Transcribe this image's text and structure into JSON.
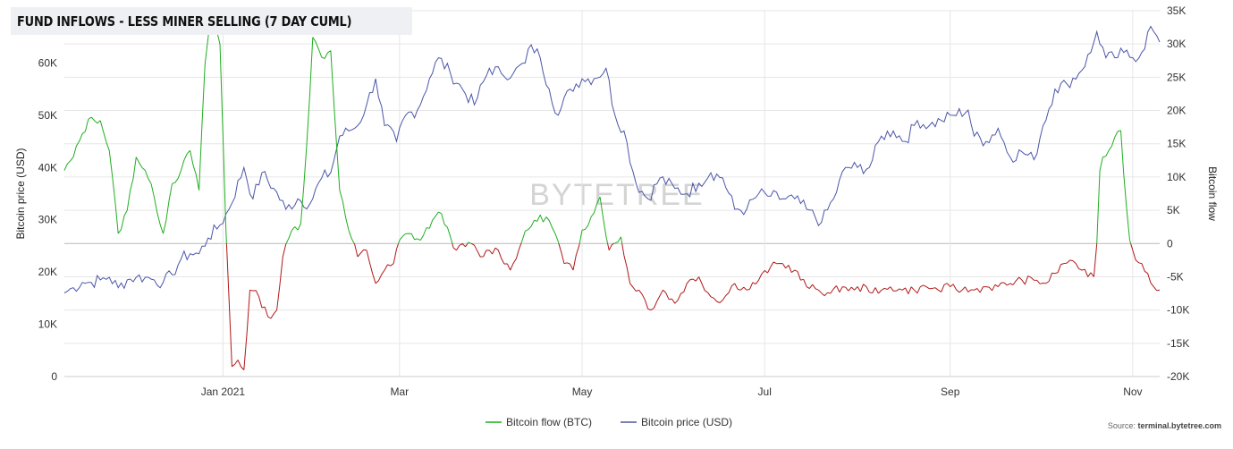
{
  "title": "FUND INFLOWS - LESS MINER SELLING (7 DAY CUML)",
  "watermark": "BYTETREE",
  "source_prefix": "Source: ",
  "source_site": "terminal.bytetree.com",
  "colors": {
    "flow_positive": "#1fae1f",
    "flow_negative": "#b01818",
    "price": "#4b56a8"
  },
  "chart_data": {
    "type": "line",
    "x_range": [
      "2020-11-09",
      "2021-11-10"
    ],
    "x_ticks": [
      {
        "date": "2021-01-01",
        "label": "Jan 2021"
      },
      {
        "date": "2021-03-01",
        "label": "Mar"
      },
      {
        "date": "2021-05-01",
        "label": "May"
      },
      {
        "date": "2021-07-01",
        "label": "Jul"
      },
      {
        "date": "2021-09-01",
        "label": "Sep"
      },
      {
        "date": "2021-11-01",
        "label": "Nov"
      }
    ],
    "y_left": {
      "label": "Bitcoin price (USD)",
      "range": [
        0,
        70000
      ],
      "ticks": [
        0,
        10000,
        20000,
        30000,
        40000,
        50000,
        60000
      ],
      "tick_labels": [
        "0",
        "10K",
        "20K",
        "30K",
        "40K",
        "50K",
        "60K"
      ]
    },
    "y_right": {
      "label": "Bitcoin flow",
      "range": [
        -20000,
        35000
      ],
      "ticks": [
        -20000,
        -15000,
        -10000,
        -5000,
        0,
        5000,
        10000,
        15000,
        20000,
        25000,
        30000,
        35000
      ],
      "tick_labels": [
        "-20K",
        "-15K",
        "-10K",
        "-5K",
        "0",
        "5K",
        "10K",
        "15K",
        "20K",
        "25K",
        "30K",
        "35K"
      ]
    },
    "legend": {
      "position": "bottom-center"
    },
    "series": [
      {
        "name": "Bitcoin flow (BTC)",
        "axis": "right",
        "points": [
          [
            "2020-11-09",
            11000
          ],
          [
            "2020-11-12",
            13000
          ],
          [
            "2020-11-15",
            16500
          ],
          [
            "2020-11-18",
            19000
          ],
          [
            "2020-11-21",
            18500
          ],
          [
            "2020-11-24",
            14000
          ],
          [
            "2020-11-27",
            1500
          ],
          [
            "2020-11-30",
            5000
          ],
          [
            "2020-12-03",
            13000
          ],
          [
            "2020-12-06",
            11000
          ],
          [
            "2020-12-09",
            7000
          ],
          [
            "2020-12-12",
            1500
          ],
          [
            "2020-12-15",
            9000
          ],
          [
            "2020-12-18",
            11000
          ],
          [
            "2020-12-21",
            14000
          ],
          [
            "2020-12-24",
            8000
          ],
          [
            "2020-12-26",
            27000
          ],
          [
            "2020-12-28",
            35000
          ],
          [
            "2020-12-31",
            30000
          ],
          [
            "2021-01-02",
            2000
          ],
          [
            "2021-01-04",
            -18500
          ],
          [
            "2021-01-06",
            -17500
          ],
          [
            "2021-01-08",
            -19000
          ],
          [
            "2021-01-10",
            -7000
          ],
          [
            "2021-01-13",
            -8000
          ],
          [
            "2021-01-16",
            -11000
          ],
          [
            "2021-01-19",
            -10000
          ],
          [
            "2021-01-21",
            -2000
          ],
          [
            "2021-01-24",
            2000
          ],
          [
            "2021-01-27",
            3000
          ],
          [
            "2021-01-29",
            15000
          ],
          [
            "2021-01-31",
            31000
          ],
          [
            "2021-02-03",
            28000
          ],
          [
            "2021-02-06",
            29000
          ],
          [
            "2021-02-09",
            8000
          ],
          [
            "2021-02-12",
            2000
          ],
          [
            "2021-02-15",
            -2000
          ],
          [
            "2021-02-18",
            -1000
          ],
          [
            "2021-02-21",
            -6000
          ],
          [
            "2021-02-24",
            -4000
          ],
          [
            "2021-02-27",
            -3000
          ],
          [
            "2021-03-01",
            500
          ],
          [
            "2021-03-04",
            1500
          ],
          [
            "2021-03-08",
            500
          ],
          [
            "2021-03-12",
            3500
          ],
          [
            "2021-03-15",
            4500
          ],
          [
            "2021-03-18",
            1000
          ],
          [
            "2021-03-20",
            -1000
          ],
          [
            "2021-03-25",
            0
          ],
          [
            "2021-03-28",
            -2000
          ],
          [
            "2021-03-31",
            -1000
          ],
          [
            "2021-04-03",
            -1000
          ],
          [
            "2021-04-07",
            -4000
          ],
          [
            "2021-04-11",
            500
          ],
          [
            "2021-04-15",
            3500
          ],
          [
            "2021-04-19",
            4000
          ],
          [
            "2021-04-22",
            1500
          ],
          [
            "2021-04-25",
            -3000
          ],
          [
            "2021-04-28",
            -4000
          ],
          [
            "2021-05-01",
            2000
          ],
          [
            "2021-05-04",
            4000
          ],
          [
            "2021-05-07",
            7000
          ],
          [
            "2021-05-10",
            -1000
          ],
          [
            "2021-05-14",
            1000
          ],
          [
            "2021-05-17",
            -6000
          ],
          [
            "2021-05-20",
            -7000
          ],
          [
            "2021-05-24",
            -10000
          ],
          [
            "2021-05-28",
            -7000
          ],
          [
            "2021-06-01",
            -9000
          ],
          [
            "2021-06-05",
            -6000
          ],
          [
            "2021-06-09",
            -5000
          ],
          [
            "2021-06-13",
            -8000
          ],
          [
            "2021-06-17",
            -8500
          ],
          [
            "2021-06-21",
            -6000
          ],
          [
            "2021-06-25",
            -7000
          ],
          [
            "2021-06-29",
            -5500
          ],
          [
            "2021-07-03",
            -3500
          ],
          [
            "2021-07-07",
            -3000
          ],
          [
            "2021-07-11",
            -4000
          ],
          [
            "2021-07-15",
            -6500
          ],
          [
            "2021-07-19",
            -7000
          ],
          [
            "2021-07-23",
            -7500
          ],
          [
            "2021-07-27",
            -6500
          ],
          [
            "2021-07-31",
            -7000
          ],
          [
            "2021-08-04",
            -6500
          ],
          [
            "2021-08-08",
            -7500
          ],
          [
            "2021-08-12",
            -6500
          ],
          [
            "2021-08-16",
            -7000
          ],
          [
            "2021-08-20",
            -7000
          ],
          [
            "2021-08-24",
            -6500
          ],
          [
            "2021-08-28",
            -7000
          ],
          [
            "2021-09-01",
            -6500
          ],
          [
            "2021-09-05",
            -7000
          ],
          [
            "2021-09-09",
            -7000
          ],
          [
            "2021-09-13",
            -6500
          ],
          [
            "2021-09-17",
            -6500
          ],
          [
            "2021-09-21",
            -6000
          ],
          [
            "2021-09-25",
            -5500
          ],
          [
            "2021-09-29",
            -5500
          ],
          [
            "2021-10-03",
            -6000
          ],
          [
            "2021-10-06",
            -4500
          ],
          [
            "2021-10-09",
            -3000
          ],
          [
            "2021-10-11",
            -2500
          ],
          [
            "2021-10-13",
            -3000
          ],
          [
            "2021-10-15",
            -4000
          ],
          [
            "2021-10-17",
            -5000
          ],
          [
            "2021-10-19",
            -5000
          ],
          [
            "2021-10-20",
            0
          ],
          [
            "2021-10-21",
            11000
          ],
          [
            "2021-10-22",
            13000
          ],
          [
            "2021-10-24",
            14000
          ],
          [
            "2021-10-26",
            16000
          ],
          [
            "2021-10-28",
            17000
          ],
          [
            "2021-10-30",
            5000
          ],
          [
            "2021-10-31",
            500
          ],
          [
            "2021-11-02",
            -2500
          ],
          [
            "2021-11-04",
            -3000
          ],
          [
            "2021-11-06",
            -4500
          ],
          [
            "2021-11-08",
            -6500
          ],
          [
            "2021-11-10",
            -7000
          ]
        ]
      },
      {
        "name": "Bitcoin price (USD)",
        "axis": "left",
        "points": [
          [
            "2020-11-09",
            16000
          ],
          [
            "2020-11-12",
            17000
          ],
          [
            "2020-11-15",
            18000
          ],
          [
            "2020-11-18",
            18000
          ],
          [
            "2020-11-21",
            18500
          ],
          [
            "2020-11-24",
            19000
          ],
          [
            "2020-11-27",
            17000
          ],
          [
            "2020-11-30",
            18500
          ],
          [
            "2020-12-03",
            19000
          ],
          [
            "2020-12-06",
            19000
          ],
          [
            "2020-12-09",
            18500
          ],
          [
            "2020-12-12",
            18000
          ],
          [
            "2020-12-15",
            19500
          ],
          [
            "2020-12-18",
            22500
          ],
          [
            "2020-12-21",
            23500
          ],
          [
            "2020-12-24",
            23500
          ],
          [
            "2020-12-27",
            26500
          ],
          [
            "2020-12-31",
            29000
          ],
          [
            "2021-01-03",
            32000
          ],
          [
            "2021-01-08",
            40000
          ],
          [
            "2021-01-11",
            34000
          ],
          [
            "2021-01-14",
            39000
          ],
          [
            "2021-01-18",
            36000
          ],
          [
            "2021-01-22",
            32000
          ],
          [
            "2021-01-26",
            34000
          ],
          [
            "2021-01-30",
            33000
          ],
          [
            "2021-02-03",
            38000
          ],
          [
            "2021-02-06",
            39000
          ],
          [
            "2021-02-09",
            46000
          ],
          [
            "2021-02-12",
            47000
          ],
          [
            "2021-02-15",
            48000
          ],
          [
            "2021-02-18",
            52000
          ],
          [
            "2021-02-21",
            57000
          ],
          [
            "2021-02-24",
            48000
          ],
          [
            "2021-02-28",
            45000
          ],
          [
            "2021-03-03",
            50000
          ],
          [
            "2021-03-07",
            51000
          ],
          [
            "2021-03-11",
            57000
          ],
          [
            "2021-03-14",
            61000
          ],
          [
            "2021-03-18",
            58000
          ],
          [
            "2021-03-22",
            55000
          ],
          [
            "2021-03-26",
            52000
          ],
          [
            "2021-03-31",
            59000
          ],
          [
            "2021-04-04",
            58000
          ],
          [
            "2021-04-08",
            58000
          ],
          [
            "2021-04-12",
            60000
          ],
          [
            "2021-04-14",
            63500
          ],
          [
            "2021-04-17",
            61000
          ],
          [
            "2021-04-20",
            55000
          ],
          [
            "2021-04-23",
            50000
          ],
          [
            "2021-04-27",
            55000
          ],
          [
            "2021-05-01",
            57000
          ],
          [
            "2021-05-05",
            57000
          ],
          [
            "2021-05-09",
            59000
          ],
          [
            "2021-05-12",
            50000
          ],
          [
            "2021-05-15",
            47000
          ],
          [
            "2021-05-19",
            37000
          ],
          [
            "2021-05-23",
            34000
          ],
          [
            "2021-05-27",
            38000
          ],
          [
            "2021-06-01",
            36000
          ],
          [
            "2021-06-05",
            35000
          ],
          [
            "2021-06-09",
            37000
          ],
          [
            "2021-06-13",
            39000
          ],
          [
            "2021-06-17",
            38000
          ],
          [
            "2021-06-21",
            32000
          ],
          [
            "2021-06-25",
            32000
          ],
          [
            "2021-06-29",
            35000
          ],
          [
            "2021-07-03",
            34500
          ],
          [
            "2021-07-07",
            34000
          ],
          [
            "2021-07-11",
            34000
          ],
          [
            "2021-07-15",
            32000
          ],
          [
            "2021-07-20",
            29500
          ],
          [
            "2021-07-24",
            34000
          ],
          [
            "2021-07-28",
            40000
          ],
          [
            "2021-08-01",
            40000
          ],
          [
            "2021-08-05",
            40000
          ],
          [
            "2021-08-09",
            46000
          ],
          [
            "2021-08-13",
            47000
          ],
          [
            "2021-08-17",
            45000
          ],
          [
            "2021-08-21",
            49000
          ],
          [
            "2021-08-25",
            48000
          ],
          [
            "2021-08-29",
            49000
          ],
          [
            "2021-09-02",
            50000
          ],
          [
            "2021-09-07",
            51000
          ],
          [
            "2021-09-09",
            46000
          ],
          [
            "2021-09-13",
            45000
          ],
          [
            "2021-09-17",
            47500
          ],
          [
            "2021-09-21",
            42000
          ],
          [
            "2021-09-25",
            43000
          ],
          [
            "2021-09-29",
            41500
          ],
          [
            "2021-10-02",
            48000
          ],
          [
            "2021-10-06",
            55000
          ],
          [
            "2021-10-10",
            56000
          ],
          [
            "2021-10-14",
            58000
          ],
          [
            "2021-10-18",
            62000
          ],
          [
            "2021-10-20",
            66000
          ],
          [
            "2021-10-23",
            61000
          ],
          [
            "2021-10-26",
            61000
          ],
          [
            "2021-10-29",
            62000
          ],
          [
            "2021-11-01",
            61000
          ],
          [
            "2021-11-04",
            62000
          ],
          [
            "2021-11-07",
            67000
          ],
          [
            "2021-11-08",
            66000
          ],
          [
            "2021-11-10",
            64000
          ]
        ]
      }
    ]
  }
}
